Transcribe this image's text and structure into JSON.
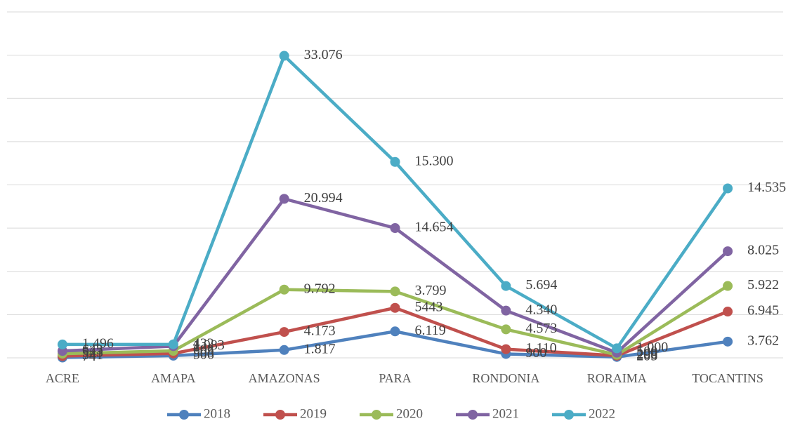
{
  "chart_data": {
    "type": "line",
    "stacked": true,
    "grid": true,
    "categories": [
      "ACRE",
      "AMAPA",
      "AMAZONAS",
      "PARA",
      "RONDONIA",
      "RORAIMA",
      "TOCANTINS"
    ],
    "ylim": [
      0,
      80000
    ],
    "yticks": [
      0,
      10000,
      20000,
      30000,
      40000,
      50000,
      60000,
      70000,
      80000
    ],
    "legend": "bottom",
    "series": [
      {
        "name": "2018",
        "color": "#4f81bd",
        "values": [
          74,
          506,
          1817,
          6119,
          900,
          205,
          3762
        ],
        "value_labels": [
          "74",
          "506",
          "1.817",
          "6.119",
          "900",
          "205",
          "3.762"
        ]
      },
      {
        "name": "2019",
        "color": "#c0504d",
        "values": [
          341,
          508,
          4173,
          5443,
          1110,
          298,
          6945
        ],
        "value_labels": [
          "341",
          "508",
          "4.173",
          "5443",
          "1.110",
          "298",
          "6.945"
        ]
      },
      {
        "name": "2020",
        "color": "#9bbb59",
        "values": [
          543,
          603,
          9792,
          3799,
          4573,
          200,
          5922
        ],
        "value_labels": [
          "543",
          "603",
          "9.792",
          "3.799",
          "4.573",
          "200",
          "5.922"
        ]
      },
      {
        "name": "2021",
        "color": "#8064a2",
        "values": [
          643,
          1083,
          20994,
          14654,
          4340,
          500,
          8025
        ],
        "value_labels": [
          "643",
          "1.083",
          "20.994",
          "14.654",
          "4.340",
          "500",
          "8.025"
        ]
      },
      {
        "name": "2022",
        "color": "#4bacc6",
        "values": [
          1496,
          432,
          33076,
          15300,
          5694,
          1000,
          14535
        ],
        "value_labels": [
          "1.496",
          "432",
          "33.076",
          "15.300",
          "5.694",
          "1.000",
          "14.535"
        ]
      }
    ]
  }
}
